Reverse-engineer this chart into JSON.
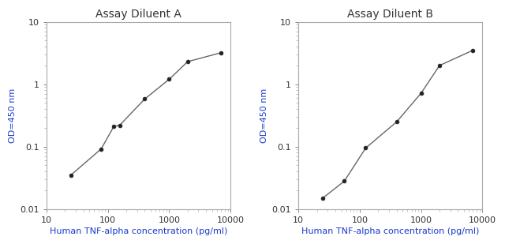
{
  "chart_A": {
    "title": "Assay Diluent A",
    "x": [
      25,
      78,
      125,
      156,
      400,
      1000,
      2000,
      7000
    ],
    "y": [
      0.035,
      0.092,
      0.21,
      0.22,
      0.58,
      1.2,
      2.3,
      3.2
    ],
    "xlim": [
      10,
      10000
    ],
    "ylim": [
      0.01,
      10
    ],
    "xlabel": "Human TNF-alpha concentration (pg/ml)",
    "ylabel": "OD=450 nm"
  },
  "chart_B": {
    "title": "Assay Diluent B",
    "x": [
      25,
      56,
      125,
      400,
      1000,
      2000,
      7000
    ],
    "y": [
      0.015,
      0.028,
      0.095,
      0.25,
      0.72,
      2.0,
      3.5
    ],
    "xlim": [
      10,
      10000
    ],
    "ylim": [
      0.01,
      10
    ],
    "xlabel": "Human TNF-alpha concentration (pg/ml)",
    "ylabel": "OD=450 nm"
  },
  "title_color": "#333333",
  "axis_label_color": "#1a3acc",
  "line_color": "#666666",
  "marker_color": "#222222",
  "tick_label_color": "#333333",
  "background_color": "#ffffff",
  "title_fontsize": 10,
  "label_fontsize": 8,
  "tick_fontsize": 8
}
